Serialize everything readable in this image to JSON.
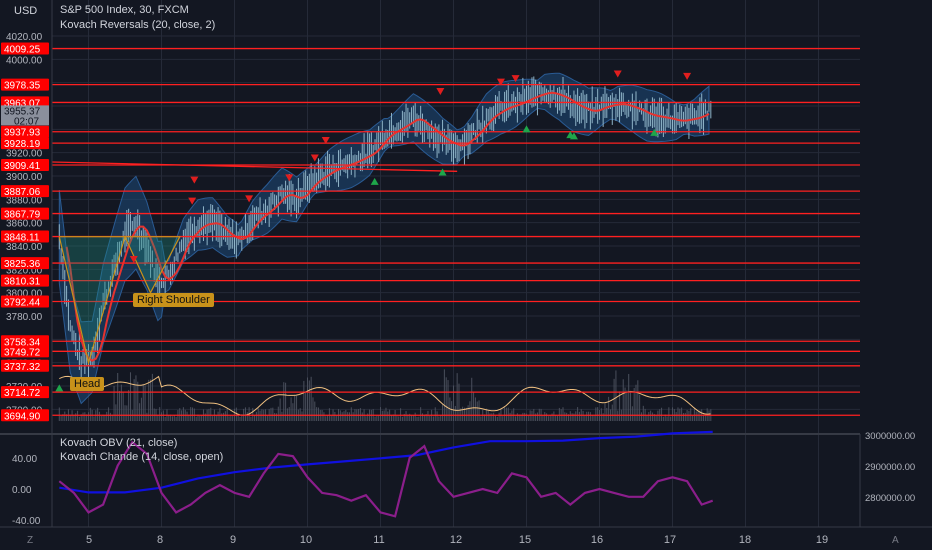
{
  "currency": "USD",
  "symbol_line": "S&P 500 Index, 30, FXCM",
  "indicator_main": "Kovach Reversals (20, close, 2)",
  "indicator_obv": "Kovach OBV (21, close)",
  "indicator_chande": "Kovach Chande (14, close, open)",
  "head_label": "Head",
  "right_shoulder_label": "Right Shoulder",
  "price_axis_ticks": [
    4020,
    4000,
    3980,
    3960,
    3940,
    3920,
    3900,
    3880,
    3860,
    3840,
    3820,
    3800,
    3780,
    3760,
    3740,
    3720,
    3700
  ],
  "price_axis_tick_labels": [
    "4020.00",
    "4000.00",
    "3980.00",
    "3960.00",
    "3940.00",
    "3920.00",
    "3900.00",
    "3880.00",
    "3860.00",
    "3840.00",
    "3820.00",
    "3800.00",
    "3780.00",
    "3760.00",
    "3740.00",
    "3720.00",
    "3700.00"
  ],
  "horizontal_levels": [
    "4009.25",
    "3978.35",
    "3963.07",
    "3937.93",
    "3928.19",
    "3909.41",
    "3887.06",
    "3867.79",
    "3848.11",
    "3825.36",
    "3810.31",
    "3792.44",
    "3758.34",
    "3749.72",
    "3737.32",
    "3714.72",
    "3694.90"
  ],
  "current_price": "3955.37",
  "countdown": "02:07",
  "lower_left_ticks": [
    "40.00",
    "0.00",
    "-40.00"
  ],
  "lower_right_ticks": [
    "3000000.00",
    "2900000.00",
    "2800000.00"
  ],
  "x_axis_labels": [
    "5",
    "8",
    "9",
    "10",
    "11",
    "12",
    "15",
    "16",
    "17",
    "18",
    "19"
  ],
  "corner_left": "Z",
  "corner_right": "A",
  "colors": {
    "background": "#131722",
    "level_line": "#ff2020",
    "level_label_bg": "#ff0000",
    "ma_line": "#e5332f",
    "band_fill": "#1e4a7a",
    "candle": "#8fb4c8",
    "obv_line": "#1010e0",
    "chande_line": "#8b1e8b",
    "vol_line": "#f0c080",
    "pattern": "#c8921a",
    "up_marker": "#1ea64a",
    "down_marker": "#e01e1e"
  },
  "chart_data": {
    "type": "line",
    "title": "S&P 500 Index, 30, FXCM",
    "ylim": [
      3690,
      4025
    ],
    "price_path": [
      [
        4.6,
        3848
      ],
      [
        4.75,
        3770
      ],
      [
        4.9,
        3740
      ],
      [
        5.05,
        3745
      ],
      [
        5.2,
        3790
      ],
      [
        5.35,
        3820
      ],
      [
        5.5,
        3850
      ],
      [
        5.65,
        3860
      ],
      [
        5.8,
        3840
      ],
      [
        5.95,
        3810
      ],
      [
        6.1,
        3815
      ],
      [
        6.3,
        3845
      ],
      [
        6.5,
        3858
      ],
      [
        6.7,
        3860
      ],
      [
        6.9,
        3848
      ],
      [
        7.05,
        3845
      ],
      [
        7.25,
        3862
      ],
      [
        7.45,
        3872
      ],
      [
        7.65,
        3885
      ],
      [
        7.85,
        3880
      ],
      [
        8.05,
        3895
      ],
      [
        8.3,
        3905
      ],
      [
        8.6,
        3912
      ],
      [
        8.85,
        3920
      ],
      [
        9.05,
        3935
      ],
      [
        9.25,
        3942
      ],
      [
        9.45,
        3950
      ],
      [
        9.65,
        3940
      ],
      [
        9.85,
        3930
      ],
      [
        10.05,
        3925
      ],
      [
        10.25,
        3935
      ],
      [
        10.45,
        3950
      ],
      [
        10.65,
        3958
      ],
      [
        10.85,
        3962
      ],
      [
        11.05,
        3968
      ],
      [
        11.25,
        3972
      ],
      [
        11.45,
        3968
      ],
      [
        11.65,
        3960
      ],
      [
        11.85,
        3955
      ],
      [
        12.05,
        3960
      ],
      [
        12.25,
        3962
      ],
      [
        12.45,
        3958
      ],
      [
        12.65,
        3952
      ],
      [
        12.85,
        3950
      ],
      [
        13.05,
        3947
      ],
      [
        13.3,
        3950
      ],
      [
        13.55,
        3958
      ]
    ],
    "obv_path": [
      [
        4.6,
        2830000
      ],
      [
        5.0,
        2815000
      ],
      [
        5.5,
        2815000
      ],
      [
        6.0,
        2830000
      ],
      [
        6.5,
        2860000
      ],
      [
        7.0,
        2880000
      ],
      [
        7.5,
        2895000
      ],
      [
        8.0,
        2905000
      ],
      [
        8.5,
        2915000
      ],
      [
        9.0,
        2925000
      ],
      [
        9.5,
        2935000
      ],
      [
        10.0,
        2960000
      ],
      [
        10.5,
        2980000
      ],
      [
        11.0,
        2980000
      ],
      [
        11.5,
        2982000
      ],
      [
        12.0,
        2990000
      ],
      [
        12.5,
        2995000
      ],
      [
        13.0,
        3005000
      ],
      [
        13.55,
        3010000
      ]
    ],
    "chande_path": [
      [
        4.6,
        10
      ],
      [
        4.8,
        -5
      ],
      [
        5.0,
        -30
      ],
      [
        5.2,
        -20
      ],
      [
        5.4,
        30
      ],
      [
        5.6,
        60
      ],
      [
        5.8,
        45
      ],
      [
        6.0,
        -5
      ],
      [
        6.2,
        -30
      ],
      [
        6.4,
        -20
      ],
      [
        6.6,
        -5
      ],
      [
        6.8,
        5
      ],
      [
        7.0,
        -5
      ],
      [
        7.2,
        -10
      ],
      [
        7.4,
        20
      ],
      [
        7.6,
        45
      ],
      [
        7.8,
        42
      ],
      [
        8.0,
        15
      ],
      [
        8.2,
        -5
      ],
      [
        8.4,
        -8
      ],
      [
        8.6,
        -15
      ],
      [
        8.8,
        -8
      ],
      [
        9.0,
        -30
      ],
      [
        9.2,
        -35
      ],
      [
        9.4,
        40
      ],
      [
        9.6,
        55
      ],
      [
        9.8,
        10
      ],
      [
        10.0,
        -10
      ],
      [
        10.2,
        -5
      ],
      [
        10.4,
        0
      ],
      [
        10.6,
        -5
      ],
      [
        10.8,
        20
      ],
      [
        11.0,
        15
      ],
      [
        11.2,
        -10
      ],
      [
        11.4,
        -5
      ],
      [
        11.6,
        -20
      ],
      [
        11.8,
        -5
      ],
      [
        12.0,
        0
      ],
      [
        12.2,
        -5
      ],
      [
        12.4,
        -10
      ],
      [
        12.6,
        -10
      ],
      [
        12.8,
        10
      ],
      [
        13.0,
        15
      ],
      [
        13.2,
        10
      ],
      [
        13.4,
        -20
      ],
      [
        13.55,
        -15
      ]
    ],
    "down_markers": [
      [
        5.62,
        3828
      ],
      [
        6.42,
        3878
      ],
      [
        6.45,
        3896
      ],
      [
        7.2,
        3880
      ],
      [
        7.75,
        3898
      ],
      [
        8.1,
        3915
      ],
      [
        8.25,
        3930
      ],
      [
        9.82,
        3972
      ],
      [
        10.65,
        3980
      ],
      [
        10.85,
        3983
      ],
      [
        12.25,
        3987
      ],
      [
        13.2,
        3985
      ]
    ],
    "up_markers": [
      [
        4.6,
        3718
      ],
      [
        8.92,
        3895
      ],
      [
        9.85,
        3903
      ],
      [
        11.0,
        3940
      ],
      [
        11.6,
        3935
      ],
      [
        11.65,
        3934
      ],
      [
        12.75,
        3937
      ]
    ]
  }
}
